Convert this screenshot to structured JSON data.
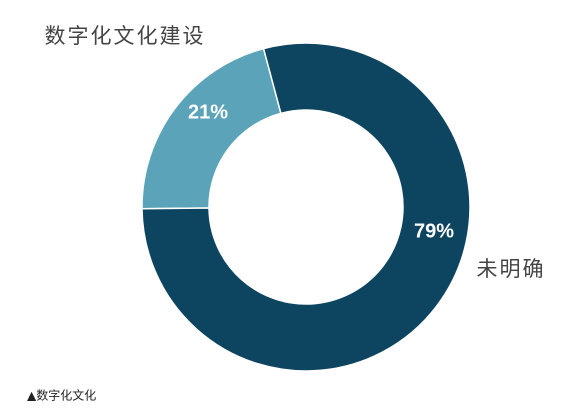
{
  "chart_data": {
    "type": "pie",
    "donut": true,
    "categories": [
      "数字化文化建设",
      "未明确"
    ],
    "values": [
      21,
      79
    ],
    "value_labels": [
      "21%",
      "79%"
    ],
    "colors": [
      "#5ba3b8",
      "#0d4561"
    ],
    "caption": "▲数字化文化"
  }
}
